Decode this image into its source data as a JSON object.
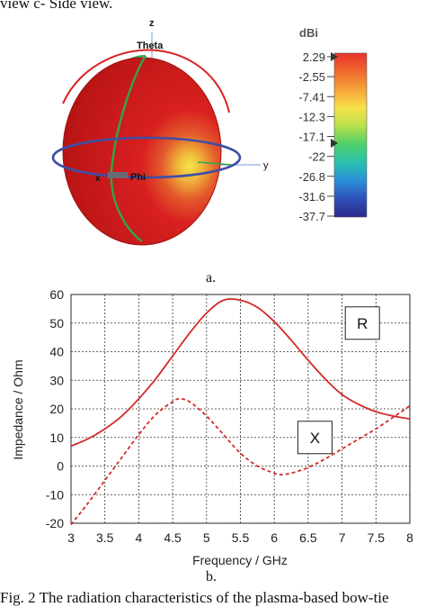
{
  "top_caption": "view   c- Side view.",
  "panel_a_label": "a.",
  "panel_b_label": "b.",
  "figure_caption": "Fig. 2 The radiation characteristics of the plasma-based bow-tie",
  "pattern3d": {
    "axis_labels": {
      "z": "z",
      "y": "y",
      "x": "x"
    },
    "theta_label": "Theta",
    "phi_label": "Phi",
    "colors": {
      "body": "#d91f1f",
      "hotspot": "#f5e74a",
      "theta_ring": "#2ea84a",
      "phi_ring": "#3d4fa8",
      "axis": "#8ab2d8"
    }
  },
  "colorbar": {
    "unit": "dBi",
    "ticks": [
      "2.29",
      "-2.55",
      "-7.41",
      "-12.3",
      "-17.1",
      "-22",
      "-26.8",
      "-31.6",
      "-37.7"
    ],
    "gradient": [
      "#e8322a",
      "#ef6a2e",
      "#f7a33a",
      "#f7e24a",
      "#b9e04a",
      "#4fd06a",
      "#2bc0b0",
      "#2a8fd8",
      "#2f4fb8",
      "#2a2a8a"
    ]
  },
  "chart_data": {
    "type": "line",
    "xlabel": "Frequency / GHz",
    "ylabel": "Impedance / Ohm",
    "xlim": [
      3,
      8
    ],
    "ylim": [
      -20,
      60
    ],
    "x_ticks": [
      "3",
      "3.5",
      "4",
      "4.5",
      "5",
      "5.5",
      "6",
      "6.5",
      "7",
      "7.5",
      "8"
    ],
    "y_ticks": [
      "-20",
      "-10",
      "0",
      "10",
      "20",
      "30",
      "40",
      "50",
      "60"
    ],
    "grid": true,
    "series": [
      {
        "name": "R",
        "style": "solid",
        "color": "#d42a2a",
        "x": [
          3,
          3.25,
          3.5,
          3.75,
          4,
          4.25,
          4.5,
          4.75,
          5,
          5.25,
          5.5,
          5.75,
          6,
          6.25,
          6.5,
          6.75,
          7,
          7.25,
          7.5,
          7.75,
          8
        ],
        "y": [
          7,
          9.5,
          13,
          17.5,
          23.5,
          30.5,
          38.5,
          46.5,
          53.5,
          58,
          58,
          55.5,
          50.5,
          44,
          37,
          30.5,
          25,
          21.5,
          19,
          17.5,
          16.5
        ]
      },
      {
        "name": "X",
        "style": "dashed",
        "color": "#d42a2a",
        "x": [
          3,
          3.25,
          3.5,
          3.75,
          4,
          4.25,
          4.5,
          4.6,
          4.75,
          5,
          5.25,
          5.5,
          5.75,
          6,
          6.1,
          6.25,
          6.5,
          6.75,
          7,
          7.25,
          7.5,
          7.75,
          8
        ],
        "y": [
          -20.5,
          -13,
          -5,
          3,
          11,
          18,
          22.5,
          23.5,
          22.5,
          17.5,
          11,
          4.5,
          0,
          -2.5,
          -3,
          -2.5,
          -0.5,
          2.5,
          6,
          9.5,
          13,
          17,
          21
        ]
      }
    ],
    "annotations": [
      {
        "text": "R",
        "x": 7.3,
        "y": 50
      },
      {
        "text": "X",
        "x": 6.6,
        "y": 10
      }
    ]
  }
}
